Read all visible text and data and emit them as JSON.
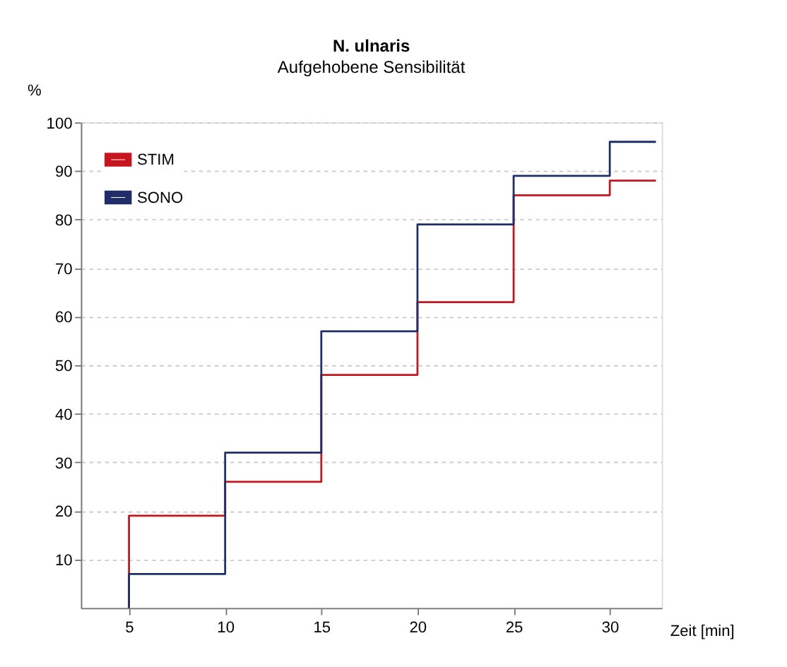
{
  "chart_data": {
    "type": "step",
    "title": "N. ulnaris",
    "subtitle": "Aufgehobene Sensibilität",
    "xlabel": "Zeit [min]",
    "ylabel": "%",
    "x": [
      5,
      5,
      10,
      15,
      20,
      25,
      30,
      32.4
    ],
    "series": [
      {
        "name": "STIM",
        "color": "#c8141e",
        "values": [
          0,
          19,
          26,
          48,
          63,
          85,
          88,
          88
        ]
      },
      {
        "name": "SONO",
        "color": "#1f2d6b",
        "values": [
          0,
          7,
          32,
          57,
          79,
          89,
          96,
          96
        ]
      }
    ],
    "xlim": [
      2.5,
      32.7
    ],
    "xticks": [
      5,
      10,
      15,
      20,
      25,
      30
    ],
    "ylim": [
      0,
      100
    ],
    "yticks": [
      10,
      20,
      30,
      40,
      50,
      60,
      70,
      80,
      90,
      100
    ],
    "grid": "y",
    "legend": "top left",
    "line_style": "solid"
  }
}
